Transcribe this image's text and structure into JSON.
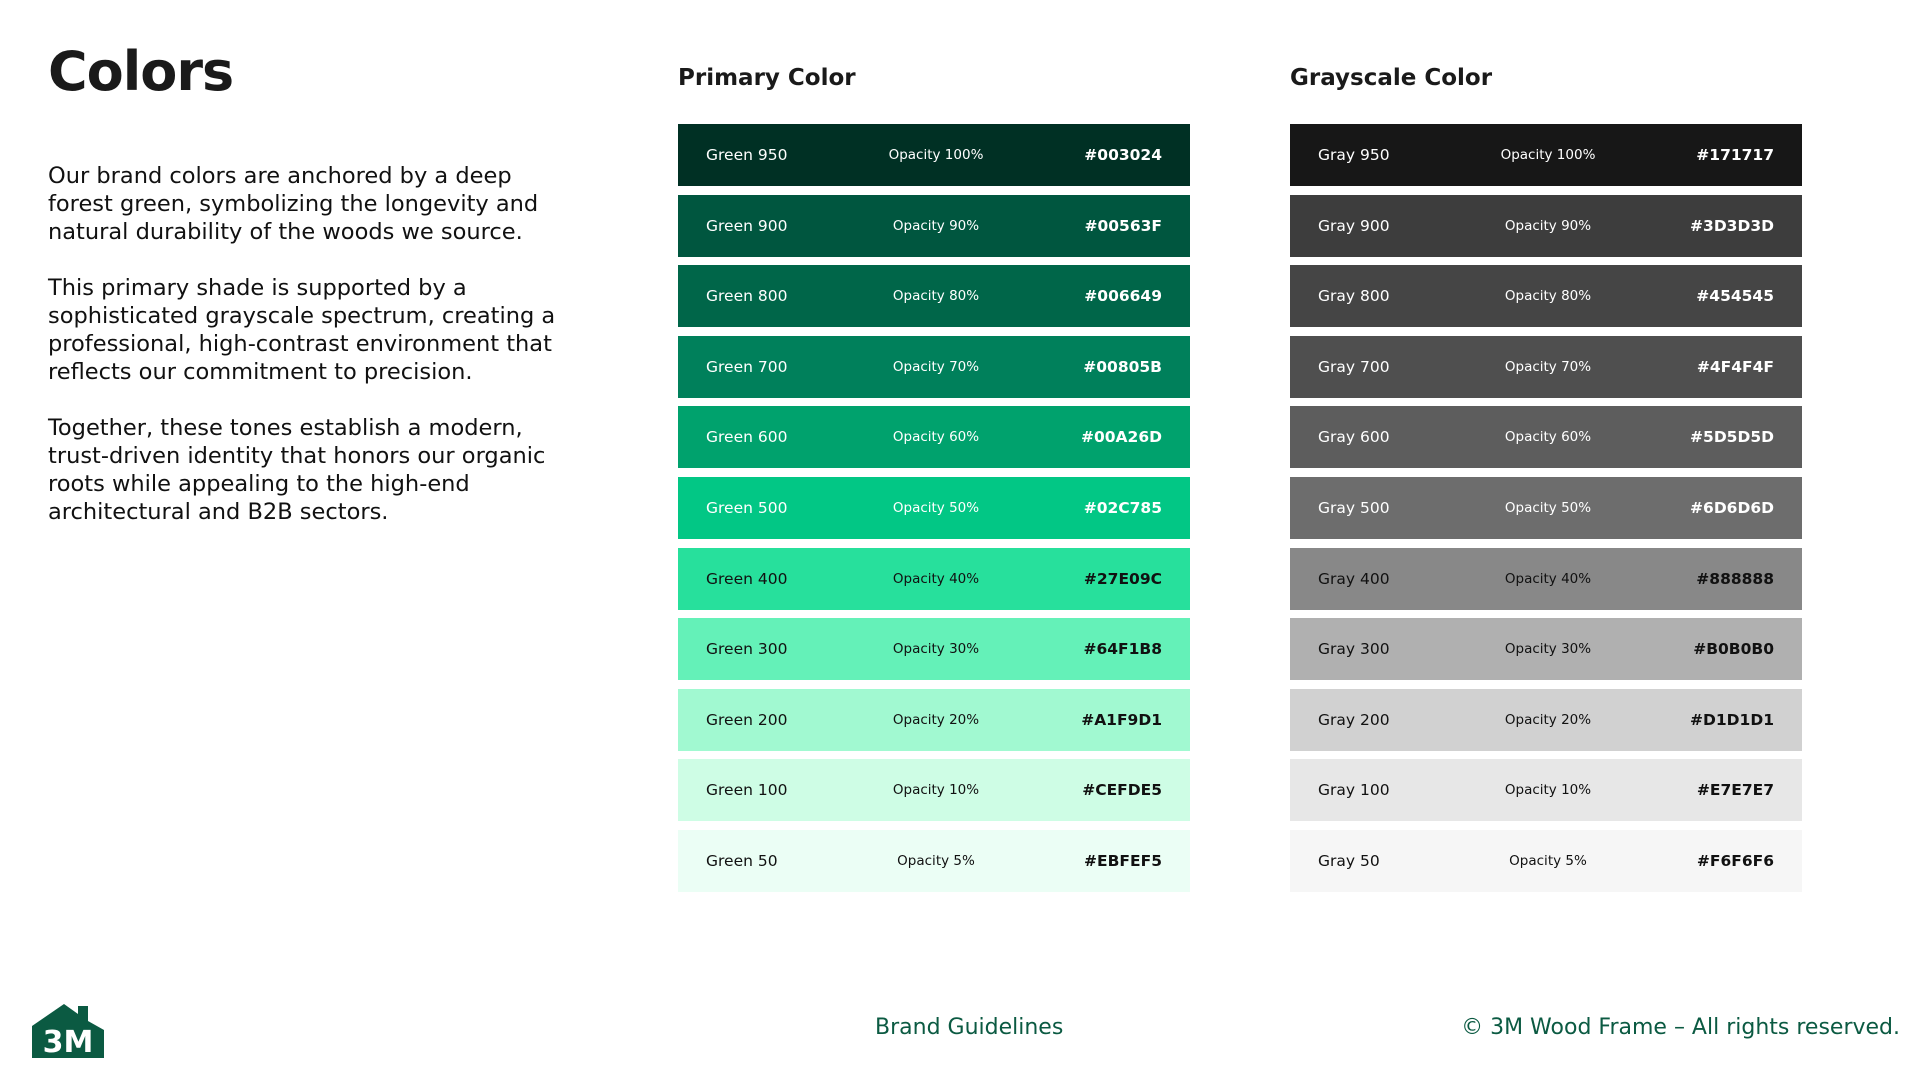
{
  "page": {
    "title": "Colors"
  },
  "intro": {
    "paragraphs": [
      "Our brand colors are anchored by a deep forest green, symbolizing the longevity and natural durability of the woods we source.",
      "This primary shade is supported by a sophisticated grayscale spectrum, creating a professional, high-contrast environment that reflects our commitment to precision.",
      "Together, these tones establish a modern, trust-driven identity that honors our organic roots while appealing to the high-end architectural and B2B sectors."
    ]
  },
  "primary": {
    "heading": "Primary Color",
    "swatches": [
      {
        "name": "Green 950",
        "opacity": "Opacity 100%",
        "hex": "#003024",
        "bg": "#003024",
        "fg": "#ffffff"
      },
      {
        "name": "Green 900",
        "opacity": "Opacity 90%",
        "hex": "#00563F",
        "bg": "#00563F",
        "fg": "#ffffff"
      },
      {
        "name": "Green 800",
        "opacity": "Opacity 80%",
        "hex": "#006649",
        "bg": "#006649",
        "fg": "#ffffff"
      },
      {
        "name": "Green 700",
        "opacity": "Opacity 70%",
        "hex": "#00805B",
        "bg": "#00805B",
        "fg": "#ffffff"
      },
      {
        "name": "Green 600",
        "opacity": "Opacity 60%",
        "hex": "#00A26D",
        "bg": "#00A26D",
        "fg": "#ffffff"
      },
      {
        "name": "Green 500",
        "opacity": "Opacity 50%",
        "hex": "#02C785",
        "bg": "#02C785",
        "fg": "#ffffff"
      },
      {
        "name": "Green 400",
        "opacity": "Opacity 40%",
        "hex": "#27E09C",
        "bg": "#27E09C",
        "fg": "#111111"
      },
      {
        "name": "Green 300",
        "opacity": "Opacity 30%",
        "hex": "#64F1B8",
        "bg": "#64F1B8",
        "fg": "#111111"
      },
      {
        "name": "Green 200",
        "opacity": "Opacity 20%",
        "hex": "#A1F9D1",
        "bg": "#A1F9D1",
        "fg": "#111111"
      },
      {
        "name": "Green 100",
        "opacity": "Opacity 10%",
        "hex": "#CEFDE5",
        "bg": "#CEFDE5",
        "fg": "#111111"
      },
      {
        "name": "Green 50",
        "opacity": "Opacity 5%",
        "hex": "#EBFEF5",
        "bg": "#EBFEF5",
        "fg": "#111111"
      }
    ]
  },
  "grayscale": {
    "heading": "Grayscale Color",
    "swatches": [
      {
        "name": "Gray 950",
        "opacity": "Opacity 100%",
        "hex": "#171717",
        "bg": "#171717",
        "fg": "#ffffff"
      },
      {
        "name": "Gray 900",
        "opacity": "Opacity 90%",
        "hex": "#3D3D3D",
        "bg": "#3D3D3D",
        "fg": "#ffffff"
      },
      {
        "name": "Gray 800",
        "opacity": "Opacity 80%",
        "hex": "#454545",
        "bg": "#454545",
        "fg": "#ffffff"
      },
      {
        "name": "Gray 700",
        "opacity": "Opacity 70%",
        "hex": "#4F4F4F",
        "bg": "#4F4F4F",
        "fg": "#ffffff"
      },
      {
        "name": "Gray 600",
        "opacity": "Opacity 60%",
        "hex": "#5D5D5D",
        "bg": "#5D5D5D",
        "fg": "#ffffff"
      },
      {
        "name": "Gray 500",
        "opacity": "Opacity 50%",
        "hex": "#6D6D6D",
        "bg": "#6D6D6D",
        "fg": "#ffffff"
      },
      {
        "name": "Gray 400",
        "opacity": "Opacity 40%",
        "hex": "#888888",
        "bg": "#888888",
        "fg": "#111111"
      },
      {
        "name": "Gray 300",
        "opacity": "Opacity 30%",
        "hex": "#B0B0B0",
        "bg": "#B0B0B0",
        "fg": "#111111"
      },
      {
        "name": "Gray 200",
        "opacity": "Opacity 20%",
        "hex": "#D1D1D1",
        "bg": "#D1D1D1",
        "fg": "#111111"
      },
      {
        "name": "Gray 100",
        "opacity": "Opacity 10%",
        "hex": "#E7E7E7",
        "bg": "#E7E7E7",
        "fg": "#111111"
      },
      {
        "name": "Gray 50",
        "opacity": "Opacity 5%",
        "hex": "#F6F6F6",
        "bg": "#F6F6F6",
        "fg": "#111111"
      }
    ]
  },
  "footer": {
    "logo_text": "3M",
    "logo_color": "#0b5a42",
    "center": "Brand Guidelines",
    "right": "© 3M Wood Frame – All rights reserved."
  }
}
